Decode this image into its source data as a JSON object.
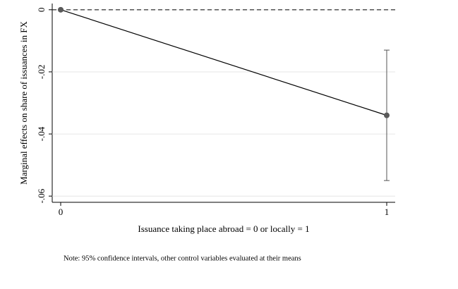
{
  "chart_data": {
    "type": "line",
    "xlabel": "Issuance taking place abroad = 0 or locally = 1",
    "ylabel": "Marginal effects on share of issuances in FX",
    "note": "Note: 95% confidence intervals, other control variables evaluated at their means",
    "x": [
      0,
      1
    ],
    "values": [
      0,
      -0.034
    ],
    "ci_low": [
      null,
      -0.055
    ],
    "ci_high": [
      null,
      -0.013
    ],
    "color": "#000000",
    "marker_color": "#5a5a5a",
    "reference_line": 0,
    "xlim": [
      -0.026,
      1.026
    ],
    "xticks": [
      0,
      1
    ],
    "ylim": [
      -0.062,
      0.002
    ],
    "yticks": [
      0,
      {
        "value": -0.02,
        "label": "-.02"
      },
      {
        "value": -0.04,
        "label": "-.04"
      },
      {
        "value": -0.06,
        "label": "-.06"
      }
    ],
    "grid": true
  }
}
